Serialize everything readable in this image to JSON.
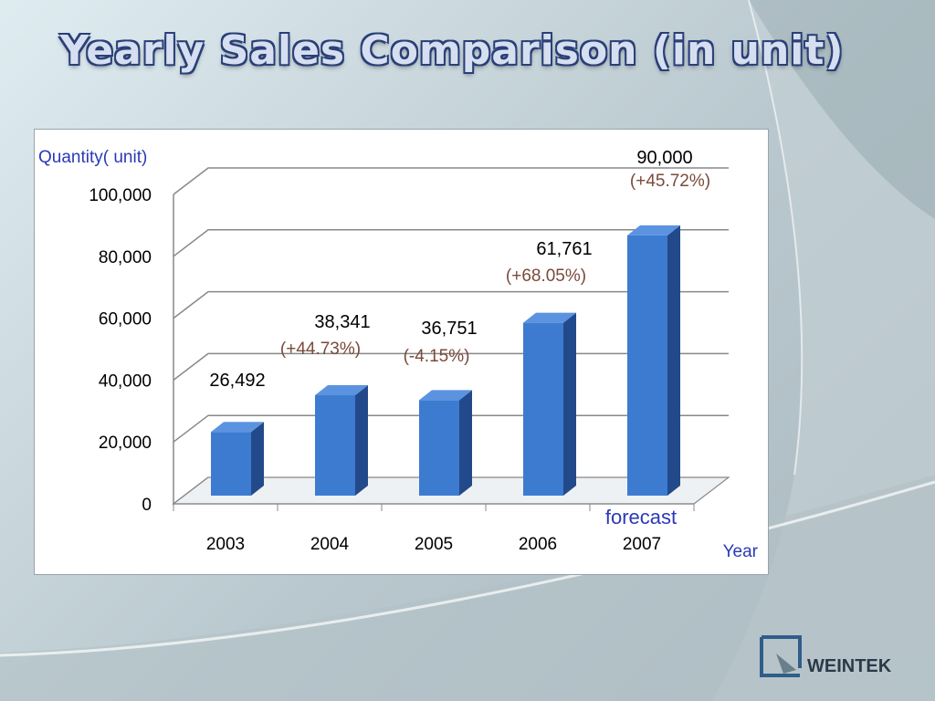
{
  "title": "Yearly Sales Comparison (in unit)",
  "colors": {
    "bar_front": "#3d7bd0",
    "bar_side": "#224a8a",
    "bar_top": "#5b93e0",
    "axis_label": "#2b39b8",
    "change_label": "#7a4a3a",
    "grid": "#888888"
  },
  "chart_data": {
    "type": "bar",
    "title": "",
    "ylabel": "Quantity( unit)",
    "xlabel": "Year",
    "ylim": [
      0,
      100000
    ],
    "yticks": [
      "0",
      "20,000",
      "40,000",
      "60,000",
      "80,000",
      "100,000"
    ],
    "categories": [
      "2003",
      "2004",
      "2005",
      "2006",
      "2007"
    ],
    "values": [
      26492,
      38341,
      36751,
      61761,
      90000
    ],
    "value_labels": [
      "26,492",
      "38,341",
      "36,751",
      "61,761",
      "90,000"
    ],
    "change_labels": [
      "",
      "(+44.73%)",
      "(-4.15%)",
      "(+68.05%)",
      "(+45.72%)"
    ],
    "annotation": "forecast",
    "grid": true,
    "legend": "none"
  },
  "logo": {
    "text": "WEINTEK",
    "icon": "weintek-logo-icon"
  }
}
